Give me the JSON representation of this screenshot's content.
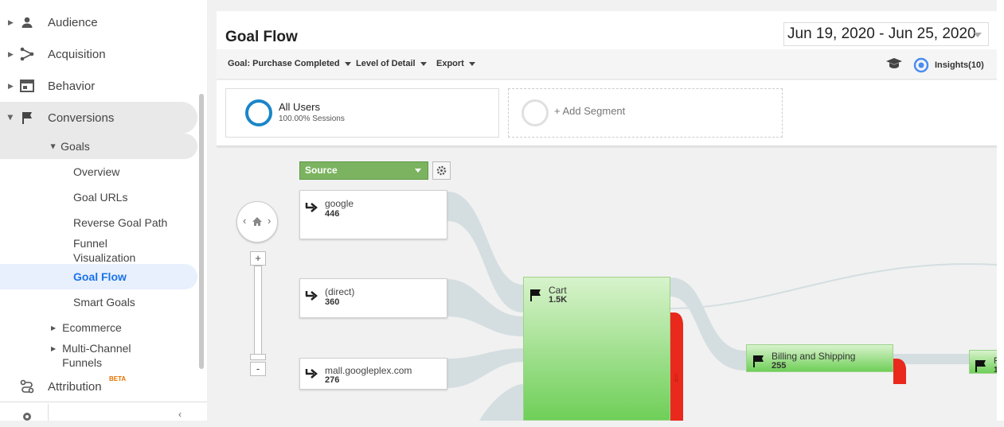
{
  "sidebar": {
    "items": [
      {
        "label": "Audience",
        "icon": "person-icon"
      },
      {
        "label": "Acquisition",
        "icon": "acquisition-icon"
      },
      {
        "label": "Behavior",
        "icon": "behavior-icon"
      },
      {
        "label": "Conversions",
        "icon": "flag-icon"
      }
    ],
    "goals": {
      "label": "Goals",
      "children": [
        "Overview",
        "Goal URLs",
        "Reverse Goal Path",
        "Funnel Visualization",
        "Goal Flow",
        "Smart Goals"
      ]
    },
    "ecommerce": "Ecommerce",
    "multi_channel": "Multi-Channel Funnels",
    "attribution": {
      "label": "Attribution",
      "badge": "BETA"
    }
  },
  "header": {
    "title": "Goal Flow",
    "date_range": "Jun 19, 2020 - Jun 25, 2020"
  },
  "toolbar": {
    "goal": "Goal: Purchase Completed",
    "level": "Level of Detail",
    "export": "Export",
    "insights": "Insights(10)"
  },
  "segments": {
    "active": {
      "name": "All Users",
      "detail": "100.00% Sessions"
    },
    "add": "+ Add Segment"
  },
  "flow": {
    "dimension": "Source",
    "zoom_in": "+",
    "zoom_out": "-",
    "sources": [
      {
        "name": "google",
        "value": "446"
      },
      {
        "name": "(direct)",
        "value": "360"
      },
      {
        "name": "mall.googleplex.com",
        "value": "276"
      }
    ],
    "steps": [
      {
        "name": "Cart",
        "value": "1.5K"
      },
      {
        "name": "Billing and Shipping",
        "value": "255"
      },
      {
        "name": "P",
        "value": "1"
      }
    ]
  },
  "colors": {
    "accent_blue": "#1a73e8",
    "goal_green": "#6fcf58",
    "dropoff_red": "#e8291c",
    "source_button": "#7cb360"
  }
}
